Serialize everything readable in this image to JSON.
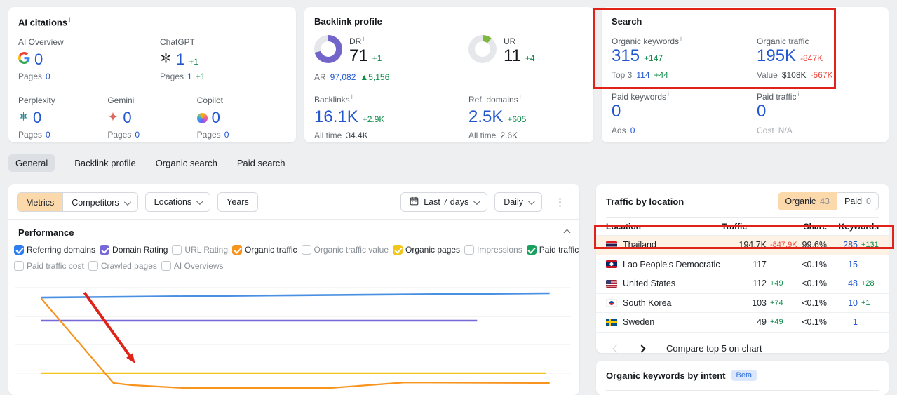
{
  "icons": {
    "info": "i",
    "kebab": "⋮"
  },
  "colors": {
    "accent_blue": "#2257cf",
    "delta_green": "#0f8a4a",
    "delta_red": "#e8483f",
    "annotation_red": "#df2318",
    "donut_purple": "#7265c9",
    "donut_green": "#7eb93e",
    "row_highlight": "#fdf2e3",
    "toggle_peach": "#fbd9ab"
  },
  "ai_citations": {
    "title": "AI citations",
    "items": [
      {
        "label": "AI Overview",
        "icon": "google-icon",
        "value": "0",
        "delta": "",
        "pages_label": "Pages",
        "pages_value": "0",
        "pages_delta": ""
      },
      {
        "label": "ChatGPT",
        "icon": "openai-icon",
        "value": "1",
        "delta": "+1",
        "pages_label": "Pages",
        "pages_value": "1",
        "pages_delta": "+1"
      },
      {
        "label": "Perplexity",
        "icon": "perplexity-icon",
        "value": "0",
        "delta": "",
        "pages_label": "Pages",
        "pages_value": "0",
        "pages_delta": ""
      },
      {
        "label": "Gemini",
        "icon": "gemini-icon",
        "value": "0",
        "delta": "",
        "pages_label": "Pages",
        "pages_value": "0",
        "pages_delta": ""
      },
      {
        "label": "Copilot",
        "icon": "copilot-icon",
        "value": "0",
        "delta": "",
        "pages_label": "Pages",
        "pages_value": "0",
        "pages_delta": ""
      }
    ]
  },
  "backlink_profile": {
    "title": "Backlink profile",
    "dr": {
      "label": "DR",
      "value": "71",
      "delta": "+1",
      "percent": 71
    },
    "ar": {
      "label": "AR",
      "value": "97,082",
      "delta": "▲5,156"
    },
    "ur": {
      "label": "UR",
      "value": "11",
      "delta": "+4",
      "percent": 11
    },
    "backlinks": {
      "label": "Backlinks",
      "value": "16.1K",
      "delta": "+2.9K",
      "alltime_label": "All time",
      "alltime_value": "34.4K"
    },
    "ref_domains": {
      "label": "Ref. domains",
      "value": "2.5K",
      "delta": "+605",
      "alltime_label": "All time",
      "alltime_value": "2.6K"
    }
  },
  "search_panel": {
    "title": "Search",
    "organic_keywords": {
      "label": "Organic keywords",
      "value": "315",
      "delta": "+147",
      "sub_label": "Top 3",
      "sub_value": "114",
      "sub_delta": "+44"
    },
    "organic_traffic": {
      "label": "Organic traffic",
      "value": "195K",
      "delta": "-847K",
      "sub_label": "Value",
      "sub_value": "$108K",
      "sub_delta": "-567K"
    },
    "paid_keywords": {
      "label": "Paid keywords",
      "value": "0",
      "sub_label": "Ads",
      "sub_value": "0"
    },
    "paid_traffic": {
      "label": "Paid traffic",
      "value": "0",
      "sub_label": "Cost",
      "sub_value": "N/A"
    }
  },
  "tabs": {
    "items": [
      {
        "label": "General",
        "selected": true
      },
      {
        "label": "Backlink profile",
        "selected": false
      },
      {
        "label": "Organic search",
        "selected": false
      },
      {
        "label": "Paid search",
        "selected": false
      }
    ]
  },
  "filters": {
    "metrics_label": "Metrics",
    "competitors_label": "Competitors",
    "locations_label": "Locations",
    "years_label": "Years",
    "date_range_label": "Last 7 days",
    "granularity_label": "Daily"
  },
  "performance": {
    "title": "Performance",
    "metrics_row1": [
      {
        "label": "Referring domains",
        "checked": true,
        "color": "#2e7ef0"
      },
      {
        "label": "Domain Rating",
        "checked": true,
        "color": "#7668d6"
      },
      {
        "label": "URL Rating",
        "checked": false,
        "color": ""
      },
      {
        "label": "Organic traffic",
        "checked": true,
        "color": "#f7941e"
      },
      {
        "label": "Organic traffic value",
        "checked": false,
        "color": ""
      },
      {
        "label": "Organic pages",
        "checked": true,
        "color": "#f3c518"
      },
      {
        "label": "Impressions",
        "checked": false,
        "color": ""
      },
      {
        "label": "Paid traffic",
        "checked": true,
        "color": "#17a05e"
      }
    ],
    "metrics_row2": [
      {
        "label": "Paid traffic cost",
        "checked": false,
        "color": ""
      },
      {
        "label": "Crawled pages",
        "checked": false,
        "color": ""
      },
      {
        "label": "AI Overviews",
        "checked": false,
        "color": ""
      }
    ]
  },
  "chart_data": {
    "type": "line",
    "title": "Performance",
    "x_range_label": "Last 7 days",
    "granularity": "Daily",
    "grid": true,
    "axes_labeled": false,
    "gridlines_y_pct": [
      17.3,
      39.5,
      61.1,
      83.2
    ],
    "series": [
      {
        "name": "Referring domains",
        "color": "#4a90e2",
        "width": 2.6,
        "points_pct": [
          [
            5.7,
            24.9
          ],
          [
            50.1,
            23.2
          ],
          [
            94.8,
            21.6
          ]
        ]
      },
      {
        "name": "Domain Rating",
        "color": "#7668d6",
        "width": 2.6,
        "points_pct": [
          [
            5.7,
            42.7
          ],
          [
            82.1,
            42.7
          ]
        ]
      },
      {
        "name": "Organic pages",
        "color": "#f5c51c",
        "width": 2.2,
        "points_pct": [
          [
            5.7,
            83.2
          ],
          [
            94.2,
            83.2
          ]
        ]
      },
      {
        "name": "Organic traffic",
        "color": "#f7941e",
        "width": 2.2,
        "points_pct": [
          [
            5.7,
            25.4
          ],
          [
            18.4,
            90.8
          ],
          [
            21.5,
            92.4
          ],
          [
            30.7,
            94.6
          ],
          [
            56.4,
            94.6
          ],
          [
            69.5,
            90.3
          ],
          [
            94.8,
            90.8
          ]
        ]
      }
    ],
    "annotation_arrow": {
      "from_pct": [
        13.3,
        21.1
      ],
      "to_pct": [
        22.2,
        75.7
      ],
      "color": "#df2318"
    }
  },
  "traffic_by_location": {
    "title": "Traffic by location",
    "toggle": {
      "organic_label": "Organic",
      "organic_count": "43",
      "paid_label": "Paid",
      "paid_count": "0",
      "selected": "organic"
    },
    "columns": {
      "location": "Location",
      "traffic": "Traffic",
      "share": "Share",
      "keywords": "Keywords"
    },
    "rows": [
      {
        "flag": "th",
        "name": "Thailand",
        "traffic": "194.7K",
        "traffic_delta": "-847.9K",
        "share": "99.6%",
        "keywords": "285",
        "keywords_delta": "+131",
        "highlighted": true
      },
      {
        "flag": "la",
        "name": "Lao People's Democratic Rep",
        "traffic": "117",
        "traffic_delta": "",
        "share": "<0.1%",
        "keywords": "15",
        "keywords_delta": "",
        "highlighted": false
      },
      {
        "flag": "us",
        "name": "United States",
        "traffic": "112",
        "traffic_delta": "+49",
        "share": "<0.1%",
        "keywords": "48",
        "keywords_delta": "+28",
        "highlighted": false
      },
      {
        "flag": "kr",
        "name": "South Korea",
        "traffic": "103",
        "traffic_delta": "+74",
        "share": "<0.1%",
        "keywords": "10",
        "keywords_delta": "+1",
        "highlighted": false
      },
      {
        "flag": "se",
        "name": "Sweden",
        "traffic": "49",
        "traffic_delta": "+49",
        "share": "<0.1%",
        "keywords": "1",
        "keywords_delta": "",
        "highlighted": false
      }
    ],
    "footer": {
      "compare_label": "Compare top 5 on chart"
    }
  },
  "keywords_by_intent": {
    "title": "Organic keywords by intent",
    "badge": "Beta"
  }
}
